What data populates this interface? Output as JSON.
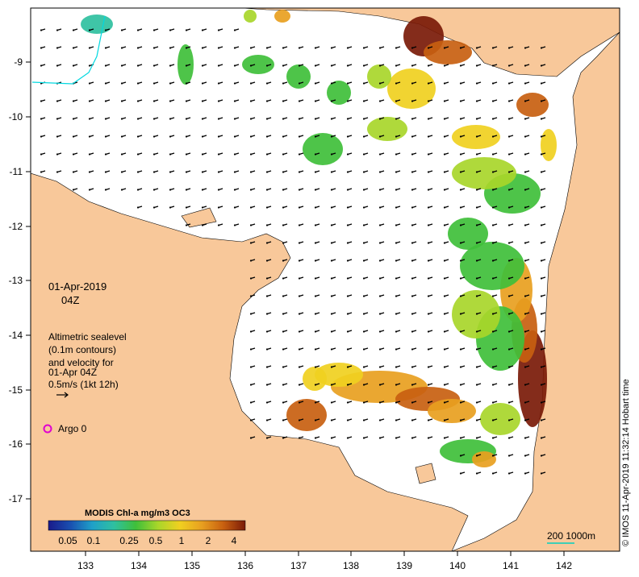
{
  "map": {
    "date_label": "01-Apr-2019",
    "time_label": "04Z",
    "info_lines": [
      "Altimetric sealevel",
      "(0.1m contours)",
      "and velocity for",
      "01-Apr 04Z",
      "0.5m/s (1kt 12h)"
    ],
    "argo_label": "Argo 0",
    "credit": "© IMOS 11-Apr-2019 11:32:14 Hobart time",
    "scale_label": "200  1000m",
    "lon_ticks": [
      "133",
      "134",
      "135",
      "136",
      "137",
      "138",
      "139",
      "140",
      "141",
      "142"
    ],
    "lat_ticks": [
      "-9",
      "-10",
      "-11",
      "-12",
      "-13",
      "-14",
      "-15",
      "-16",
      "-17"
    ],
    "colorbar": {
      "title": "MODIS Chl-a mg/m3 OC3",
      "labels": [
        "0.05",
        "0.1",
        "0.25",
        "0.5",
        "1",
        "2",
        "4"
      ],
      "colors": [
        "#1a1a8a",
        "#1a4fb0",
        "#1fa0c8",
        "#2fc0a0",
        "#3fbf3a",
        "#a8d62a",
        "#f0d020",
        "#e8a020",
        "#c86010",
        "#7a1a08"
      ]
    },
    "land_color": "#f8c89a",
    "sea_color": "#ffffff"
  }
}
